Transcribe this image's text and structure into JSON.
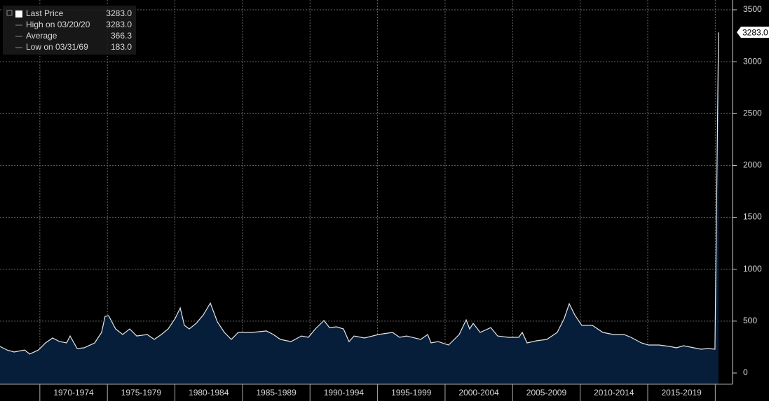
{
  "chart_data": {
    "type": "area",
    "legend": [
      {
        "name": "Last Price",
        "value": 3283,
        "value_label": "3283.0"
      },
      {
        "name": "High on 03/20/20",
        "value": 3283,
        "value_label": "3283.0"
      },
      {
        "name": "Average",
        "value": 366.3,
        "value_label": "366.3"
      },
      {
        "name": "Low on 03/31/69",
        "value": 183,
        "value_label": "183.0"
      }
    ],
    "last_value_label": "3283.0",
    "x": [
      1967.05,
      1967.57,
      1968.09,
      1968.87,
      1969.25,
      1969.9,
      1970.42,
      1970.94,
      1971.46,
      1971.98,
      1972.24,
      1972.76,
      1973.28,
      1974.06,
      1974.57,
      1974.83,
      1975.09,
      1975.61,
      1976.13,
      1976.65,
      1977.17,
      1977.95,
      1978.47,
      1978.99,
      1979.5,
      1980.02,
      1980.39,
      1980.7,
      1981.06,
      1981.58,
      1982.1,
      1982.62,
      1983.14,
      1983.66,
      1984.17,
      1984.69,
      1985.73,
      1986.77,
      1987.29,
      1987.81,
      1988.59,
      1989.36,
      1989.88,
      1990.4,
      1991.03,
      1991.44,
      1991.96,
      1992.48,
      1992.89,
      1993.26,
      1994.03,
      1995.07,
      1996.11,
      1996.63,
      1997.15,
      1998.19,
      1998.71,
      1998.96,
      1999.48,
      2000.26,
      2001.04,
      2001.56,
      2001.82,
      2002.08,
      2002.6,
      2003.38,
      2003.89,
      2004.67,
      2005.45,
      2005.71,
      2006.07,
      2006.75,
      2007.53,
      2008.3,
      2008.82,
      2009.19,
      2009.6,
      2010.12,
      2010.9,
      2011.68,
      2012.46,
      2013.24,
      2013.76,
      2014.53,
      2015.05,
      2015.83,
      2016.61,
      2017.13,
      2017.65,
      2018.42,
      2018.94,
      2019.46,
      2019.98,
      2020.24
    ],
    "series": [
      {
        "name": "Last Price",
        "color": "#e6e6e6",
        "fill": "#061e3a",
        "values": [
          256,
          222,
          202,
          222,
          183,
          222,
          290,
          337,
          303,
          290,
          357,
          236,
          243,
          290,
          391,
          546,
          553,
          425,
          371,
          425,
          357,
          371,
          324,
          371,
          425,
          526,
          627,
          459,
          425,
          479,
          560,
          674,
          492,
          391,
          324,
          391,
          391,
          405,
          371,
          324,
          303,
          357,
          344,
          425,
          506,
          438,
          445,
          425,
          303,
          357,
          337,
          371,
          391,
          344,
          357,
          324,
          371,
          290,
          303,
          270,
          371,
          512,
          425,
          479,
          391,
          438,
          357,
          344,
          344,
          391,
          290,
          310,
          324,
          391,
          526,
          667,
          560,
          459,
          459,
          391,
          371,
          371,
          344,
          290,
          270,
          270,
          256,
          243,
          263,
          243,
          229,
          236,
          229,
          3283
        ]
      }
    ],
    "xlim": [
      1967.05,
      2021.28
    ],
    "xticks": [
      1970,
      1975,
      1980,
      1985,
      1990,
      1995,
      2000,
      2005,
      2010,
      2015,
      2020
    ],
    "x_period_labels": [
      "1970-1974",
      "1975-1979",
      "1980-1984",
      "1985-1989",
      "1990-1994",
      "1995-1999",
      "2000-2004",
      "2005-2009",
      "2010-2014",
      "2015-2019"
    ],
    "ylim": [
      0,
      3500
    ],
    "yticks": [
      0,
      500,
      1000,
      1500,
      2000,
      2500,
      3000,
      3500
    ],
    "grid": true
  }
}
